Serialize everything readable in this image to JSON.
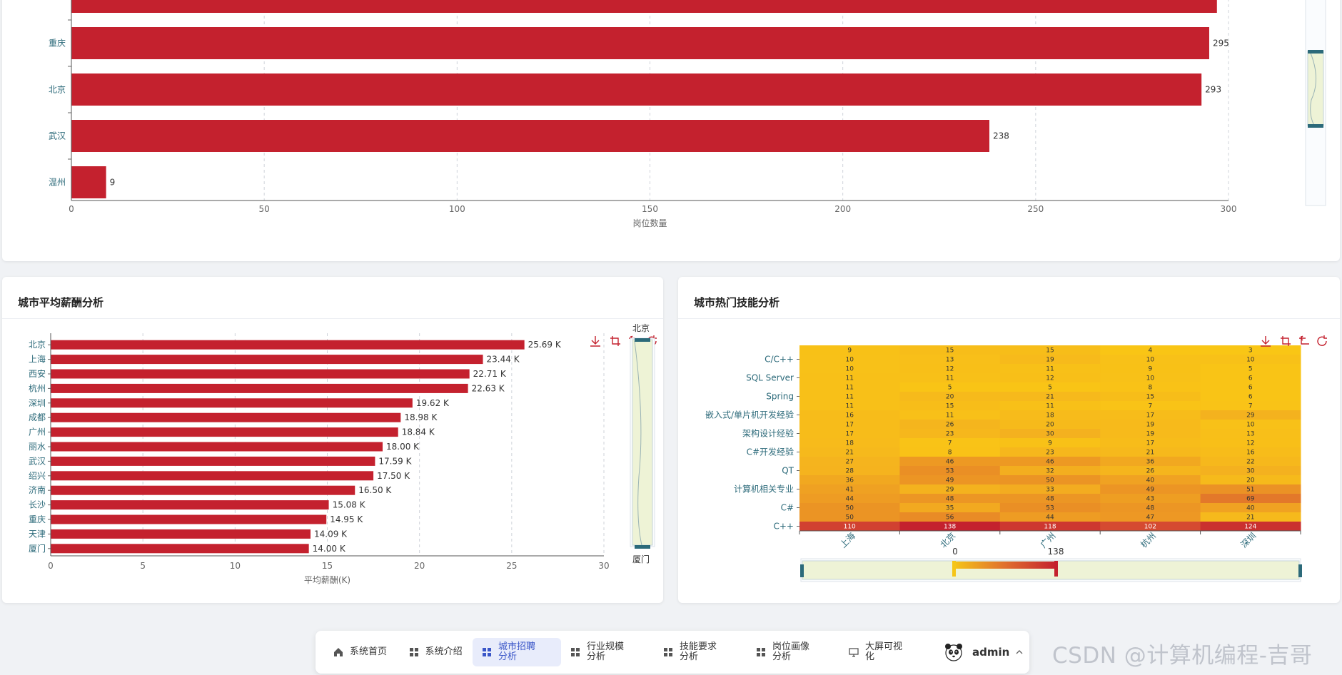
{
  "top_chart": {
    "chart_data": {
      "type": "bar",
      "orientation": "horizontal",
      "categories": [
        "重庆",
        "北京",
        "武汉",
        "温州"
      ],
      "values": [
        295,
        293,
        238,
        9
      ],
      "partial_bar_value": 297,
      "xlim": [
        0,
        300
      ],
      "xticks": [
        0,
        50,
        100,
        150,
        200,
        250,
        300
      ],
      "xlabel": "岗位数量",
      "color": "#c4212e"
    }
  },
  "salary_card": {
    "title": "城市平均薪酬分析",
    "zoom_top_label": "北京",
    "zoom_bottom_label": "厦门",
    "chart_data": {
      "type": "bar",
      "orientation": "horizontal",
      "categories": [
        "北京",
        "上海",
        "西安",
        "杭州",
        "深圳",
        "成都",
        "广州",
        "丽水",
        "武汉",
        "绍兴",
        "济南",
        "长沙",
        "重庆",
        "天津",
        "厦门"
      ],
      "values": [
        25.69,
        23.44,
        22.71,
        22.63,
        19.62,
        18.98,
        18.84,
        18.0,
        17.59,
        17.5,
        16.5,
        15.08,
        14.95,
        14.09,
        14.0
      ],
      "labels": [
        "25.69 K",
        "23.44 K",
        "22.71 K",
        "22.63 K",
        "19.62 K",
        "18.98 K",
        "18.84 K",
        "18.00 K",
        "17.59 K",
        "17.50 K",
        "16.50 K",
        "15.08 K",
        "14.95 K",
        "14.09 K",
        "14.00 K"
      ],
      "xlim": [
        0,
        30
      ],
      "xticks": [
        0,
        5,
        10,
        15,
        20,
        25,
        30
      ],
      "xlabel": "平均薪酬(K)",
      "color": "#c4212e"
    }
  },
  "skills_card": {
    "title": "城市热门技能分析",
    "visual_map_min": "0",
    "visual_map_max": "138",
    "chart_data": {
      "type": "heatmap",
      "x_categories": [
        "上海",
        "北京",
        "广州",
        "杭州",
        "深圳"
      ],
      "y_tick_labels": [
        "C/C++",
        "SQL Server",
        "Spring",
        "嵌入式/单片机开发经验",
        "架构设计经验",
        "C#开发经验",
        "QT",
        "计算机相关专业",
        "C#",
        "C++"
      ],
      "y_tick_rows": [
        1,
        3,
        5,
        7,
        9,
        11,
        13,
        15,
        17,
        19
      ],
      "rows": [
        [
          9,
          15,
          15,
          4,
          3
        ],
        [
          10,
          13,
          19,
          10,
          10
        ],
        [
          10,
          12,
          11,
          9,
          5
        ],
        [
          11,
          11,
          12,
          10,
          6
        ],
        [
          11,
          5,
          5,
          8,
          6
        ],
        [
          11,
          20,
          21,
          15,
          6
        ],
        [
          11,
          15,
          11,
          7,
          7
        ],
        [
          16,
          11,
          18,
          17,
          29
        ],
        [
          17,
          26,
          20,
          19,
          10
        ],
        [
          17,
          23,
          30,
          19,
          13
        ],
        [
          18,
          7,
          9,
          17,
          12
        ],
        [
          21,
          8,
          23,
          21,
          16
        ],
        [
          27,
          46,
          46,
          36,
          22
        ],
        [
          28,
          53,
          32,
          26,
          30
        ],
        [
          36,
          49,
          50,
          40,
          20
        ],
        [
          41,
          29,
          33,
          49,
          51
        ],
        [
          44,
          48,
          48,
          43,
          69
        ],
        [
          50,
          35,
          53,
          48,
          40
        ],
        [
          50,
          56,
          44,
          47,
          21
        ],
        [
          110,
          138,
          118,
          102,
          124
        ]
      ],
      "min": 0,
      "max": 138
    }
  },
  "nav": {
    "items": [
      {
        "label": "系统首页",
        "icon": "home-icon"
      },
      {
        "label": "系统介绍",
        "icon": "grid-icon"
      },
      {
        "label": "城市招聘分析",
        "icon": "grid-icon"
      },
      {
        "label": "行业规模分析",
        "icon": "grid-icon"
      },
      {
        "label": "技能要求分析",
        "icon": "grid-icon"
      },
      {
        "label": "岗位画像分析",
        "icon": "grid-icon"
      },
      {
        "label": "大屏可视化",
        "icon": "monitor-icon"
      }
    ],
    "active_index": 2,
    "user": "admin"
  },
  "watermark": "CSDN @计算机编程-吉哥"
}
